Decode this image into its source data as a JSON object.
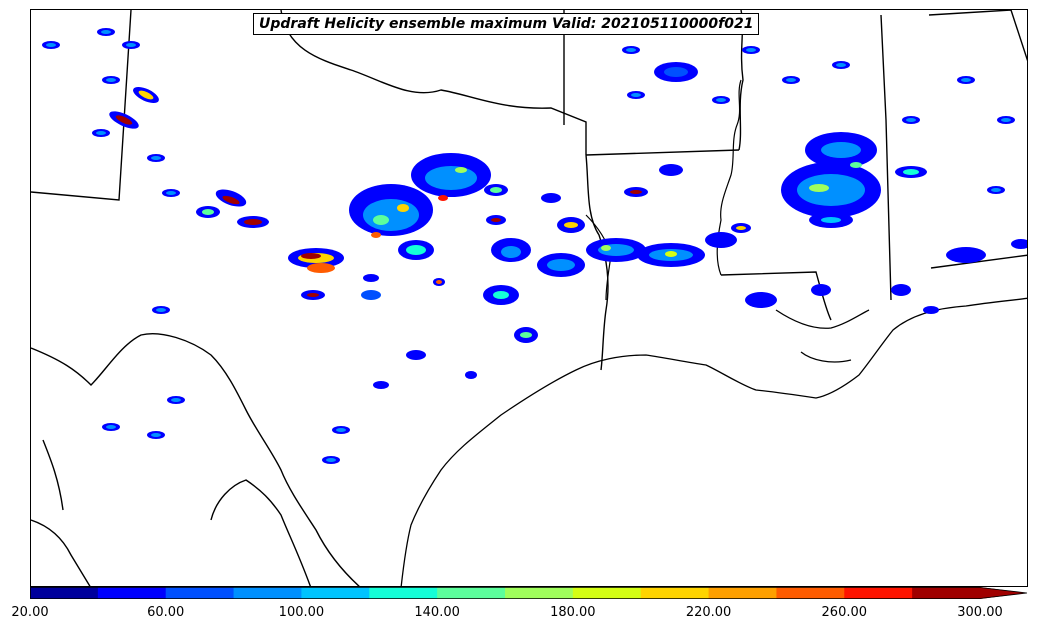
{
  "title": "Updraft Helicity ensemble maximum Valid: 202105110000f021",
  "colorbar": {
    "colors": [
      "#00009c",
      "#0000ff",
      "#0050ff",
      "#0090ff",
      "#00c4ff",
      "#14ffd8",
      "#5cff9c",
      "#a0ff5c",
      "#d4ff14",
      "#ffd400",
      "#ffa000",
      "#ff5c00",
      "#ff1400",
      "#a00000"
    ],
    "extend_color": "#a00000",
    "tick_labels": [
      "20.00",
      "60.00",
      "100.00",
      "140.00",
      "180.00",
      "220.00",
      "260.00",
      "300.00"
    ],
    "min": 20,
    "max": 300,
    "step": 20,
    "extend": "max"
  }
}
